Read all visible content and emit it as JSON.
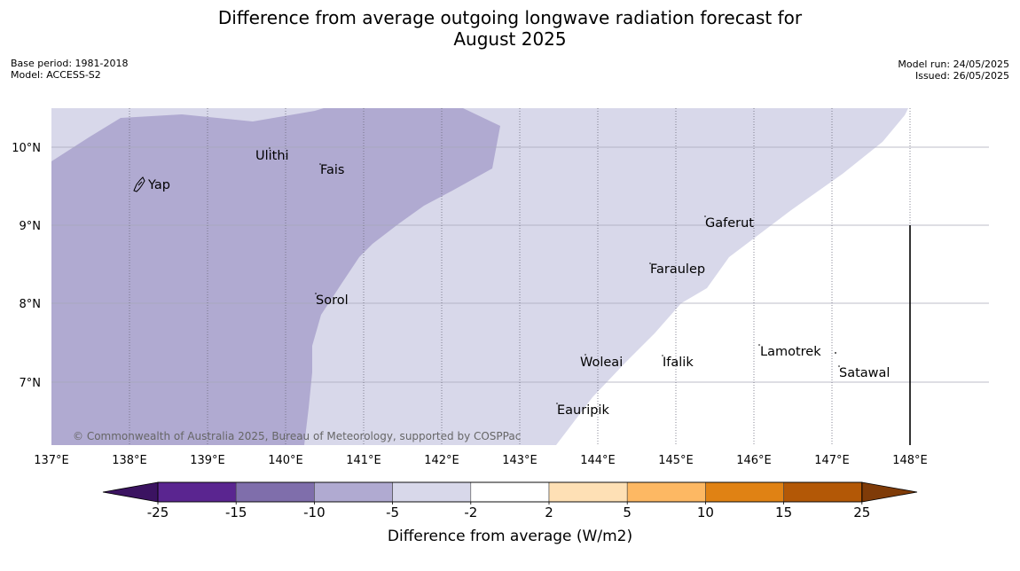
{
  "title_line1": "Difference from average outgoing longwave radiation forecast for",
  "title_line2": "August 2025",
  "meta_left": {
    "base_period": "Base period: 1981-2018",
    "model": "Model: ACCESS-S2"
  },
  "meta_right": {
    "model_run": "Model run: 24/05/2025",
    "issued": "Issued: 26/05/2025"
  },
  "map": {
    "lon_labels": [
      "137°E",
      "138°E",
      "139°E",
      "140°E",
      "141°E",
      "142°E",
      "143°E",
      "144°E",
      "145°E",
      "146°E",
      "147°E",
      "148°E"
    ],
    "lat_labels": [
      "10°N",
      "9°N",
      "8°N",
      "7°N"
    ],
    "places": [
      {
        "name": "Yap"
      },
      {
        "name": "Ulithi"
      },
      {
        "name": "Fais"
      },
      {
        "name": "Gaferut"
      },
      {
        "name": "Faraulep"
      },
      {
        "name": "Sorol"
      },
      {
        "name": "Lamotrek"
      },
      {
        "name": "Woleai"
      },
      {
        "name": "Ifalik"
      },
      {
        "name": "Satawal"
      },
      {
        "name": "Eauripik"
      }
    ],
    "copyright": "© Commonwealth of Australia 2025, Bureau of Meteorology, supported by COSPPac"
  },
  "colorbar": {
    "ticks": [
      "-25",
      "-15",
      "-10",
      "-5",
      "-2",
      "2",
      "5",
      "10",
      "15",
      "25"
    ],
    "colors": [
      "#3b1361",
      "#5a2590",
      "#7f6eab",
      "#b0aad1",
      "#d8d8ea",
      "#ffffff",
      "#fee0b5",
      "#fdb863",
      "#e08214",
      "#b35806",
      "#7f3b08"
    ],
    "label": "Difference from average (W/m2)"
  }
}
